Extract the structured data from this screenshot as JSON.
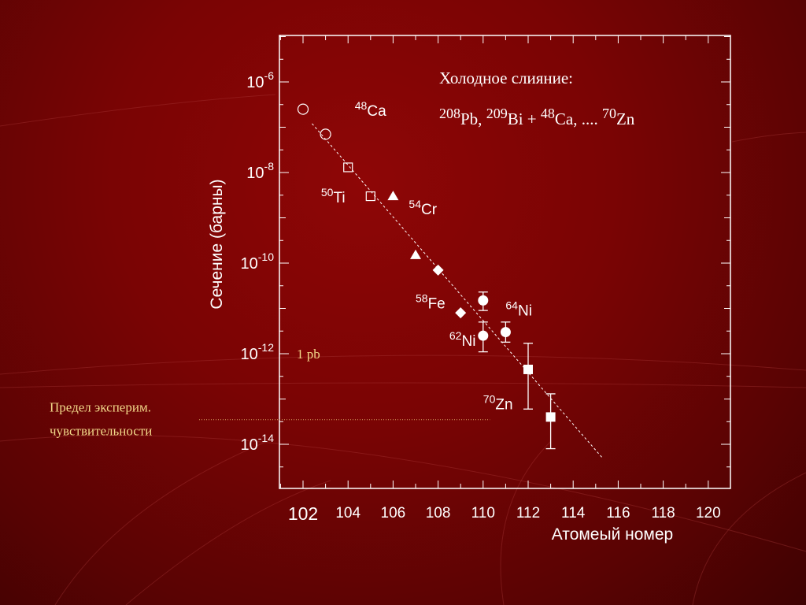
{
  "colors": {
    "background": "#7a0404",
    "foreground": "#ffffff",
    "note": "#f2d98a"
  },
  "chart_data": {
    "type": "scatter",
    "xlabel": "Атомеый номер",
    "ylabel": "Сечение  (барны)",
    "xlim": [
      101,
      121
    ],
    "ylim_log10": [
      -15.1,
      -5.0
    ],
    "yscale": "log",
    "xticks": [
      "102",
      "104",
      "106",
      "108",
      "110",
      "112",
      "114",
      "116",
      "118",
      "120"
    ],
    "yticks": [
      {
        "base": "10",
        "exp": "-6"
      },
      {
        "base": "10",
        "exp": "-8"
      },
      {
        "base": "10",
        "exp": "-10"
      },
      {
        "base": "10",
        "exp": "-12"
      },
      {
        "base": "10",
        "exp": "-14"
      }
    ],
    "grid": false,
    "title": {
      "line1": "Холодное слияние:",
      "line2": [
        {
          "sup": "208",
          "text": "Pb, "
        },
        {
          "sup": "209",
          "text": "Bi + "
        },
        {
          "sup": "48",
          "text": "Ca, .... "
        },
        {
          "sup": "70",
          "text": "Zn"
        }
      ]
    },
    "series": [
      {
        "projectile": "48Ca",
        "marker": "open-circle",
        "points": [
          {
            "x": 102,
            "y": 2.5e-07
          },
          {
            "x": 103,
            "y": 7e-08
          }
        ]
      },
      {
        "projectile": "50Ti",
        "marker": "open-square",
        "points": [
          {
            "x": 104,
            "y": 1.3e-08
          },
          {
            "x": 105,
            "y": 3e-09
          }
        ]
      },
      {
        "projectile": "54Cr",
        "marker": "filled-triangle",
        "points": [
          {
            "x": 106,
            "y": 3e-09
          },
          {
            "x": 107,
            "y": 1.5e-10
          }
        ]
      },
      {
        "projectile": "58Fe",
        "marker": "filled-diamond",
        "points": [
          {
            "x": 108,
            "y": 7e-11
          },
          {
            "x": 109,
            "y": 8e-12
          }
        ]
      },
      {
        "projectile": "64Ni",
        "marker": "filled-circle",
        "points": [
          {
            "x": 110,
            "y": 1.5e-11,
            "ylo": 9e-12,
            "yhi": 2.3e-11
          },
          {
            "x": 111,
            "y": 3e-12,
            "ylo": 1.8e-12,
            "yhi": 5e-12
          }
        ]
      },
      {
        "projectile": "62Ni",
        "marker": "filled-circle",
        "points": [
          {
            "x": 110,
            "y": 2.5e-12,
            "ylo": 1.1e-12,
            "yhi": 5e-12
          }
        ]
      },
      {
        "projectile": "70Zn",
        "marker": "filled-square",
        "points": [
          {
            "x": 112,
            "y": 4.5e-13,
            "ylo": 6e-14,
            "yhi": 1.7e-12
          },
          {
            "x": 113,
            "y": 4e-14,
            "ylo": 8e-15,
            "yhi": 1.3e-13
          }
        ]
      }
    ],
    "trend_line": {
      "style": "dashed",
      "points": [
        {
          "x": 102.4,
          "y": 1.2e-07
        },
        {
          "x": 115.3,
          "y": 5e-15
        }
      ]
    },
    "annotations": [
      {
        "id": "ca",
        "mass": "48",
        "symbol": "Ca",
        "at": {
          "x": 104.3,
          "y": 1.8e-07
        }
      },
      {
        "id": "ti",
        "mass": "50",
        "symbol": "Ti",
        "at": {
          "x": 102.8,
          "y": 2.2e-09
        }
      },
      {
        "id": "cr",
        "mass": "54",
        "symbol": "Cr",
        "at": {
          "x": 106.7,
          "y": 1.2e-09
        }
      },
      {
        "id": "fe",
        "mass": "58",
        "symbol": "Fe",
        "at": {
          "x": 107.0,
          "y": 1e-11
        }
      },
      {
        "id": "ni64",
        "mass": "64",
        "symbol": "Ni",
        "at": {
          "x": 111.0,
          "y": 7e-12
        }
      },
      {
        "id": "ni62",
        "mass": "62",
        "symbol": "Ni",
        "at": {
          "x": 108.5,
          "y": 1.5e-12
        }
      },
      {
        "id": "zn",
        "mass": "70",
        "symbol": "Zn",
        "at": {
          "x": 110.0,
          "y": 6e-14
        }
      }
    ],
    "note_1pb": {
      "text": "1 pb",
      "y": 1e-12
    },
    "sensitivity_limit": {
      "label_line1": "Предел эксперим.",
      "label_line2": "чувствительности",
      "y": 3.5e-14
    }
  }
}
